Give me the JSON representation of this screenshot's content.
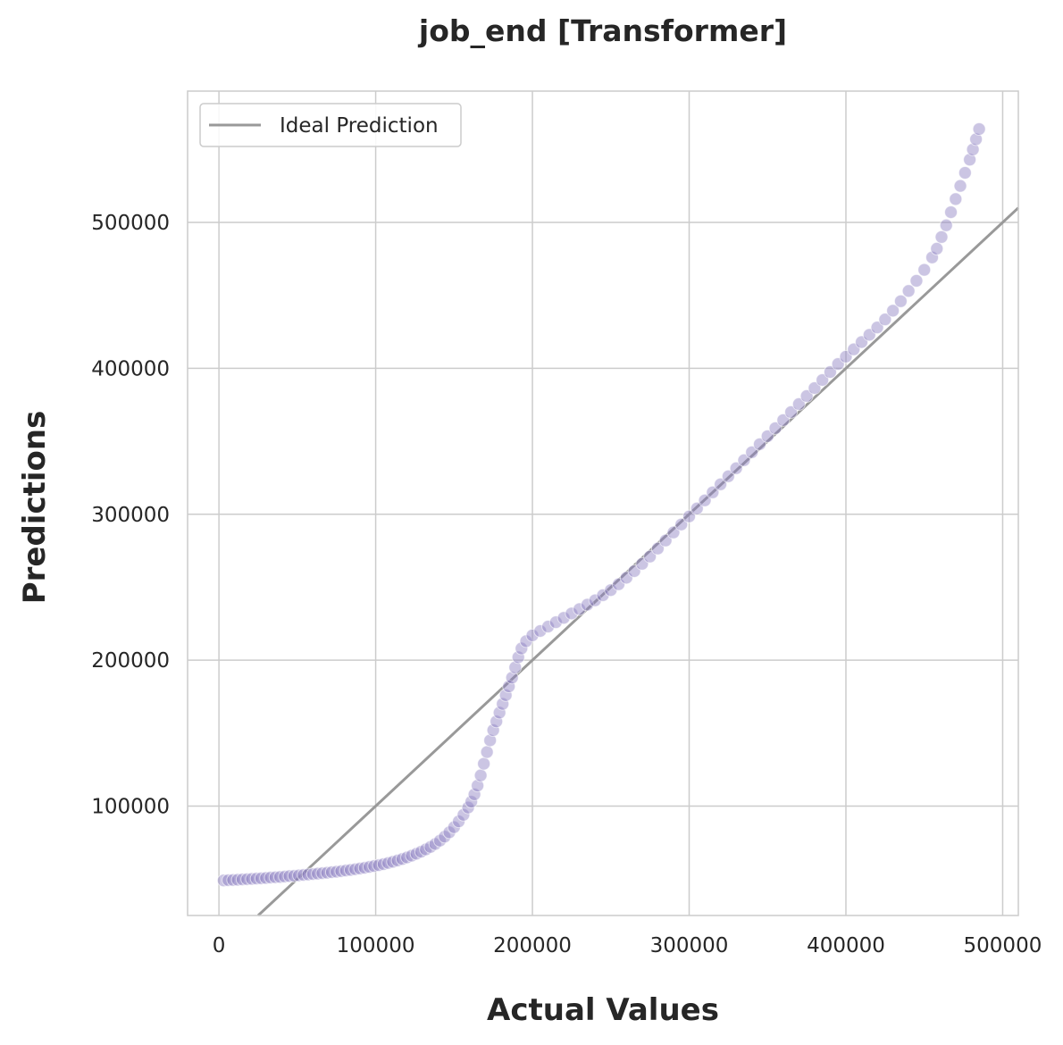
{
  "chart_data": {
    "type": "scatter",
    "title": "job_end [Transformer]",
    "xlabel": "Actual Values",
    "ylabel": "Predictions",
    "xlim": [
      -20000,
      510000
    ],
    "ylim": [
      25000,
      590000
    ],
    "xticks": [
      0,
      100000,
      200000,
      300000,
      400000,
      500000
    ],
    "yticks": [
      100000,
      200000,
      300000,
      400000,
      500000
    ],
    "grid": true,
    "legend_position": "top-left",
    "colors": {
      "points": "#8b7fc0",
      "ideal_line": "#999999",
      "grid": "#cccccc"
    },
    "series": [
      {
        "name": "",
        "points": [
          [
            3000,
            49000
          ],
          [
            6000,
            49200
          ],
          [
            9000,
            49300
          ],
          [
            12000,
            49500
          ],
          [
            15000,
            49700
          ],
          [
            18000,
            49900
          ],
          [
            21000,
            50100
          ],
          [
            24000,
            50300
          ],
          [
            27000,
            50500
          ],
          [
            30000,
            50700
          ],
          [
            33000,
            51000
          ],
          [
            36000,
            51200
          ],
          [
            39000,
            51400
          ],
          [
            42000,
            51700
          ],
          [
            45000,
            52000
          ],
          [
            48000,
            52200
          ],
          [
            51000,
            52500
          ],
          [
            54000,
            52800
          ],
          [
            57000,
            53100
          ],
          [
            60000,
            53400
          ],
          [
            63000,
            53700
          ],
          [
            66000,
            54000
          ],
          [
            69000,
            54300
          ],
          [
            72000,
            54700
          ],
          [
            75000,
            55000
          ],
          [
            78000,
            55400
          ],
          [
            81000,
            55800
          ],
          [
            84000,
            56200
          ],
          [
            87000,
            56700
          ],
          [
            90000,
            57200
          ],
          [
            93000,
            57700
          ],
          [
            96000,
            58300
          ],
          [
            99000,
            58900
          ],
          [
            102000,
            59500
          ],
          [
            105000,
            60200
          ],
          [
            108000,
            61000
          ],
          [
            111000,
            61800
          ],
          [
            114000,
            62700
          ],
          [
            117000,
            63700
          ],
          [
            120000,
            64800
          ],
          [
            123000,
            66000
          ],
          [
            126000,
            67300
          ],
          [
            129000,
            68700
          ],
          [
            132000,
            70300
          ],
          [
            135000,
            72000
          ],
          [
            138000,
            74000
          ],
          [
            141000,
            76300
          ],
          [
            144000,
            79000
          ],
          [
            147000,
            82000
          ],
          [
            150000,
            85500
          ],
          [
            153000,
            89500
          ],
          [
            156000,
            94000
          ],
          [
            159000,
            99000
          ],
          [
            161000,
            103000
          ],
          [
            163000,
            108000
          ],
          [
            165000,
            114000
          ],
          [
            167000,
            121000
          ],
          [
            169000,
            129000
          ],
          [
            171000,
            137000
          ],
          [
            173000,
            145000
          ],
          [
            175000,
            152000
          ],
          [
            177000,
            158000
          ],
          [
            179000,
            164000
          ],
          [
            181000,
            170000
          ],
          [
            183000,
            176000
          ],
          [
            185000,
            182000
          ],
          [
            187000,
            188000
          ],
          [
            189000,
            195000
          ],
          [
            191000,
            202000
          ],
          [
            193000,
            208000
          ],
          [
            196000,
            213000
          ],
          [
            200000,
            217000
          ],
          [
            205000,
            220000
          ],
          [
            210000,
            223000
          ],
          [
            215000,
            226000
          ],
          [
            220000,
            229000
          ],
          [
            225000,
            232000
          ],
          [
            230000,
            235000
          ],
          [
            235000,
            238000
          ],
          [
            240000,
            241000
          ],
          [
            245000,
            244500
          ],
          [
            250000,
            248000
          ],
          [
            255000,
            252000
          ],
          [
            260000,
            256500
          ],
          [
            265000,
            261000
          ],
          [
            270000,
            266000
          ],
          [
            275000,
            271000
          ],
          [
            280000,
            276500
          ],
          [
            285000,
            282000
          ],
          [
            290000,
            287500
          ],
          [
            295000,
            293000
          ],
          [
            300000,
            298500
          ],
          [
            305000,
            304000
          ],
          [
            310000,
            309500
          ],
          [
            315000,
            315000
          ],
          [
            320000,
            320500
          ],
          [
            325000,
            326000
          ],
          [
            330000,
            331500
          ],
          [
            335000,
            337000
          ],
          [
            340000,
            342500
          ],
          [
            345000,
            348000
          ],
          [
            350000,
            353500
          ],
          [
            355000,
            359000
          ],
          [
            360000,
            364500
          ],
          [
            365000,
            370000
          ],
          [
            370000,
            375500
          ],
          [
            375000,
            381000
          ],
          [
            380000,
            386500
          ],
          [
            385000,
            392000
          ],
          [
            390000,
            397500
          ],
          [
            395000,
            403000
          ],
          [
            400000,
            408000
          ],
          [
            405000,
            413000
          ],
          [
            410000,
            418000
          ],
          [
            415000,
            423000
          ],
          [
            420000,
            428000
          ],
          [
            425000,
            433500
          ],
          [
            430000,
            439500
          ],
          [
            435000,
            446000
          ],
          [
            440000,
            453000
          ],
          [
            445000,
            460000
          ],
          [
            450000,
            467500
          ],
          [
            455000,
            476000
          ],
          [
            458000,
            482000
          ],
          [
            461000,
            490000
          ],
          [
            464000,
            498000
          ],
          [
            467000,
            507000
          ],
          [
            470000,
            516000
          ],
          [
            473000,
            525000
          ],
          [
            476000,
            534000
          ],
          [
            479000,
            543000
          ],
          [
            481000,
            550000
          ],
          [
            483000,
            557000
          ],
          [
            485000,
            564000
          ]
        ]
      }
    ],
    "ideal_line": {
      "name": "Ideal Prediction",
      "points": [
        [
          -20000,
          -20000
        ],
        [
          510000,
          510000
        ]
      ]
    }
  }
}
